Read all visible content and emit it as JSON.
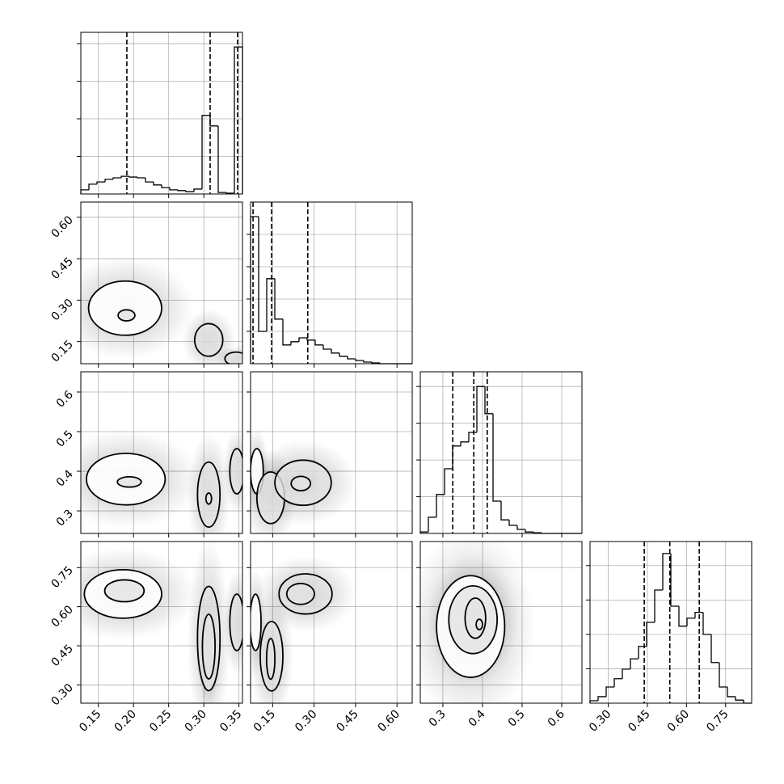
{
  "chart_data": {
    "type": "corner",
    "grid": true,
    "params": [
      {
        "lim": [
          0.125,
          0.355
        ],
        "ticks": [
          0.15,
          {
            "value": 0.2,
            "label": "0.20"
          },
          0.25,
          {
            "value": 0.3,
            "label": "0.30"
          },
          0.35
        ],
        "hist": {
          "bins": [
            0.125,
            0.1365,
            0.148,
            0.1595,
            0.171,
            0.1825,
            0.194,
            0.2055,
            0.217,
            0.2285,
            0.24,
            0.2515,
            0.263,
            0.2745,
            0.286,
            0.2975,
            0.309,
            0.3205,
            0.332,
            0.3435,
            0.355
          ],
          "counts": [
            110,
            260,
            320,
            390,
            430,
            470,
            450,
            430,
            320,
            240,
            170,
            110,
            90,
            60,
            130,
            2090,
            1810,
            40,
            20,
            3910
          ],
          "ylim": [
            0,
            4300
          ],
          "yticks": [
            1000,
            2000,
            3000,
            4000
          ]
        },
        "quantiles": [
          0.1905,
          0.309,
          0.348
        ]
      },
      {
        "lim": [
          0.07,
          0.655
        ],
        "ticks": [
          0.15,
          {
            "value": 0.3,
            "label": "0.30"
          },
          0.45,
          {
            "value": 0.6,
            "label": "0.60"
          }
        ],
        "hist": {
          "bins": [
            0.07,
            0.09925,
            0.1285,
            0.15775,
            0.187,
            0.21625,
            0.2455,
            0.27475,
            0.304,
            0.33325,
            0.3625,
            0.39175,
            0.421,
            0.45025,
            0.4795,
            0.50875,
            0.538,
            0.56725,
            0.5965,
            0.62575,
            0.655
          ],
          "counts": [
            4550,
            1000,
            2630,
            1380,
            580,
            680,
            800,
            730,
            580,
            450,
            330,
            230,
            150,
            100,
            50,
            25,
            0,
            0,
            0,
            0
          ],
          "ylim": [
            0,
            5000
          ],
          "yticks": [
            1000,
            2000,
            3000,
            4000
          ]
        },
        "quantiles": [
          0.079,
          0.146,
          0.277
        ]
      },
      {
        "lim": [
          0.243,
          0.651
        ],
        "ticks": [
          0.3,
          0.4,
          0.5,
          0.6
        ],
        "hist": {
          "bins": [
            0.243,
            0.2634,
            0.2838,
            0.3042,
            0.3246,
            0.345,
            0.3654,
            0.3858,
            0.4062,
            0.4266,
            0.447,
            0.4674,
            0.4878,
            0.5082,
            0.5286,
            0.549,
            0.5694,
            0.5898,
            0.6102,
            0.6306,
            0.651
          ],
          "counts": [
            40,
            440,
            1060,
            1760,
            2380,
            2490,
            2750,
            4000,
            3260,
            880,
            370,
            220,
            110,
            40,
            20,
            0,
            0,
            0,
            0,
            0
          ],
          "ylim": [
            0,
            4400
          ],
          "yticks": [
            1000,
            2000,
            3000,
            4000
          ]
        },
        "quantiles": [
          0.325,
          0.378,
          0.412
        ]
      },
      {
        "lim": [
          0.23,
          0.85
        ],
        "ticks": [
          {
            "value": 0.3,
            "label": "0.30"
          },
          0.45,
          {
            "value": 0.6,
            "label": "0.60"
          },
          0.75
        ],
        "hist": {
          "bins": [
            0.23,
            0.261,
            0.292,
            0.323,
            0.354,
            0.385,
            0.416,
            0.447,
            0.478,
            0.509,
            0.54,
            0.571,
            0.602,
            0.633,
            0.664,
            0.695,
            0.726,
            0.757,
            0.788,
            0.819,
            0.85
          ],
          "counts": [
            70,
            190,
            470,
            710,
            990,
            1290,
            1650,
            2350,
            3290,
            4350,
            2820,
            2240,
            2470,
            2640,
            2000,
            1180,
            470,
            190,
            90,
            0
          ],
          "ylim": [
            0,
            4700
          ],
          "yticks": [
            1000,
            2000,
            3000,
            4000
          ]
        },
        "quantiles": [
          0.438,
          0.536,
          0.649
        ]
      }
    ],
    "panels": [
      [
        {
          "contours": [
            {
              "cx": 0.188,
              "cy": 0.271,
              "rx": 0.052,
              "ry": 0.098
            },
            {
              "cx": 0.19,
              "cy": 0.245,
              "rx": 0.012,
              "ry": 0.02
            },
            {
              "cx": 0.307,
              "cy": 0.156,
              "rx": 0.02,
              "ry": 0.059
            },
            {
              "cx": 0.346,
              "cy": 0.088,
              "rx": 0.016,
              "ry": 0.024
            }
          ]
        }
      ],
      [
        {
          "contours": [
            {
              "cx": 0.189,
              "cy": 0.38,
              "rx": 0.056,
              "ry": 0.065
            },
            {
              "cx": 0.194,
              "cy": 0.373,
              "rx": 0.017,
              "ry": 0.013
            },
            {
              "cx": 0.307,
              "cy": 0.341,
              "rx": 0.016,
              "ry": 0.082
            },
            {
              "cx": 0.307,
              "cy": 0.331,
              "rx": 0.004,
              "ry": 0.014
            },
            {
              "cx": 0.347,
              "cy": 0.4,
              "rx": 0.01,
              "ry": 0.057
            }
          ]
        },
        {
          "contours": [
            {
              "cx": 0.093,
              "cy": 0.4,
              "rx": 0.023,
              "ry": 0.057
            },
            {
              "cx": 0.143,
              "cy": 0.333,
              "rx": 0.05,
              "ry": 0.065
            },
            {
              "cx": 0.26,
              "cy": 0.371,
              "rx": 0.102,
              "ry": 0.057
            },
            {
              "cx": 0.252,
              "cy": 0.369,
              "rx": 0.035,
              "ry": 0.018
            }
          ]
        }
      ],
      [
        {
          "contours": [
            {
              "cx": 0.185,
              "cy": 0.649,
              "rx": 0.055,
              "ry": 0.093
            },
            {
              "cx": 0.187,
              "cy": 0.661,
              "rx": 0.028,
              "ry": 0.042
            },
            {
              "cx": 0.307,
              "cy": 0.478,
              "rx": 0.016,
              "ry": 0.2
            },
            {
              "cx": 0.307,
              "cy": 0.447,
              "rx": 0.009,
              "ry": 0.124
            },
            {
              "cx": 0.347,
              "cy": 0.54,
              "rx": 0.01,
              "ry": 0.108
            }
          ]
        },
        {
          "contours": [
            {
              "cx": 0.088,
              "cy": 0.54,
              "rx": 0.02,
              "ry": 0.108
            },
            {
              "cx": 0.146,
              "cy": 0.41,
              "rx": 0.041,
              "ry": 0.133
            },
            {
              "cx": 0.269,
              "cy": 0.649,
              "rx": 0.096,
              "ry": 0.077
            },
            {
              "cx": 0.251,
              "cy": 0.649,
              "rx": 0.05,
              "ry": 0.04
            },
            {
              "cx": 0.143,
              "cy": 0.4,
              "rx": 0.015,
              "ry": 0.078
            }
          ]
        },
        {
          "contours": [
            {
              "cx": 0.37,
              "cy": 0.524,
              "rx": 0.086,
              "ry": 0.195
            },
            {
              "cx": 0.376,
              "cy": 0.55,
              "rx": 0.061,
              "ry": 0.13
            },
            {
              "cx": 0.382,
              "cy": 0.556,
              "rx": 0.026,
              "ry": 0.077
            },
            {
              "cx": 0.392,
              "cy": 0.532,
              "rx": 0.008,
              "ry": 0.02
            }
          ]
        }
      ]
    ]
  }
}
